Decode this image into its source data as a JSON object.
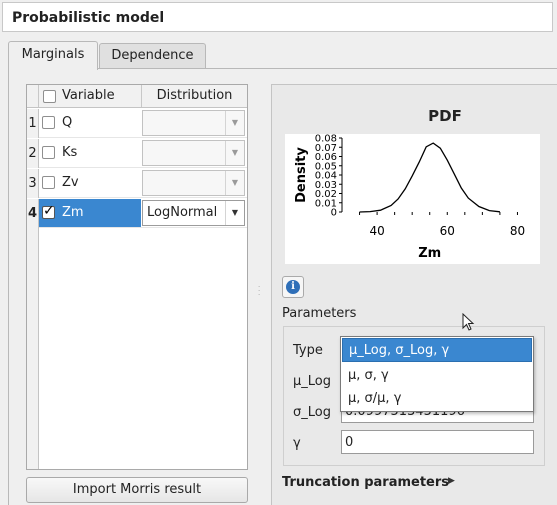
{
  "window": {
    "title": "Probabilistic model"
  },
  "tabs": [
    {
      "label": "Marginals",
      "active": true
    },
    {
      "label": "Dependence",
      "active": false
    }
  ],
  "table": {
    "columns": [
      "Variable",
      "Distribution"
    ],
    "rows": [
      {
        "index": "1",
        "variable": "Q",
        "checked": false,
        "distribution": ""
      },
      {
        "index": "2",
        "variable": "Ks",
        "checked": false,
        "distribution": ""
      },
      {
        "index": "3",
        "variable": "Zv",
        "checked": false,
        "distribution": ""
      },
      {
        "index": "4",
        "variable": "Zm",
        "checked": true,
        "distribution": "LogNormal"
      }
    ]
  },
  "buttons": {
    "import_morris": "Import Morris result"
  },
  "pdf_plot": {
    "title": "PDF",
    "xlabel": "Zm",
    "ylabel": "Density",
    "y_ticks": [
      "0.08",
      "0.07",
      "0.06",
      "0.05",
      "0.04",
      "0.03",
      "0.02",
      "0.01",
      "0"
    ],
    "x_ticks": [
      "40",
      "60",
      "80"
    ]
  },
  "chart_data": {
    "type": "line",
    "title": "PDF",
    "xlabel": "Zm",
    "ylabel": "Density",
    "xlim": [
      30,
      85
    ],
    "ylim": [
      0,
      0.08
    ],
    "series": [
      {
        "x": [
          35,
          38,
          41,
          44,
          46,
          48,
          50,
          52,
          54,
          56,
          58,
          60,
          62,
          64,
          66,
          69,
          72,
          75
        ],
        "values": [
          0.0,
          0.0004,
          0.002,
          0.007,
          0.014,
          0.025,
          0.039,
          0.054,
          0.0705,
          0.0745,
          0.069,
          0.056,
          0.041,
          0.026,
          0.015,
          0.006,
          0.0015,
          0.0002
        ]
      }
    ]
  },
  "parameters": {
    "section_label": "Parameters",
    "type_label": "Type",
    "mu_label": "μ_Log",
    "sigma_label": "σ_Log",
    "sigma_value": "0.0997513451196",
    "gamma_label": "γ",
    "gamma_value": "0"
  },
  "type_dropdown": {
    "options": [
      "μ_Log, σ_Log, γ",
      "μ, σ, γ",
      "μ, σ/μ, γ"
    ],
    "selected": "μ_Log, σ_Log, γ"
  },
  "truncation": {
    "label": "Truncation parameters"
  },
  "colors": {
    "selection": "#3a87d0",
    "info_icon": "#2f6fb8"
  },
  "icons": [
    "info-icon",
    "checkbox-icon",
    "chevron-down-icon",
    "triangle-right-icon",
    "mouse-cursor-icon"
  ]
}
